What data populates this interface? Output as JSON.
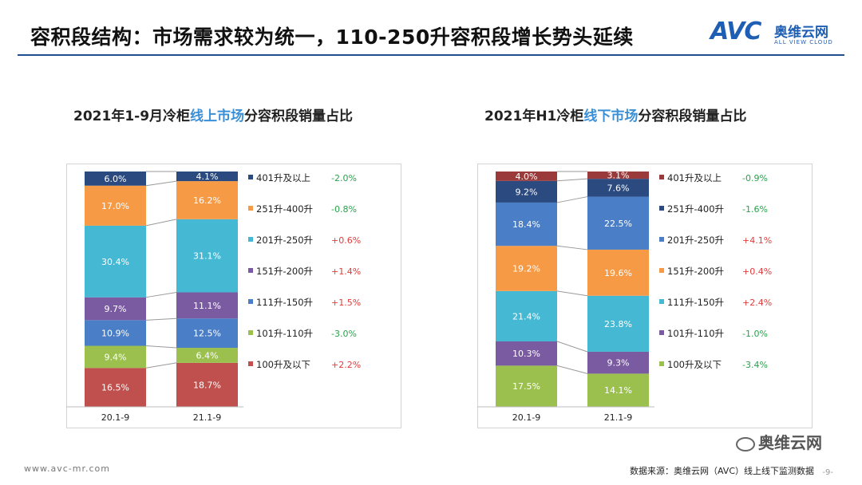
{
  "header": {
    "title": "容积段结构：市场需求较为统一，110-250升容积段增长势头延续",
    "logo_text": "AVC",
    "logo_cn": "奥维云网",
    "logo_en": "ALL VIEW CLOUD"
  },
  "footer": {
    "website": "www.avc-mr.com",
    "source": "数据来源：奥维云网（AVC）线上线下监测数据",
    "page": "-9-",
    "wechat": "奥维云网"
  },
  "colors": {
    "dark_blue": "#2b4a7f",
    "orange": "#f79a46",
    "cyan": "#45b8d4",
    "purple": "#7a5aa0",
    "blue": "#4a7ec6",
    "green": "#9bc04e",
    "red": "#c0504d",
    "dark_red": "#9b3a3a",
    "pos": "#e03c3c",
    "neg": "#27a34a"
  },
  "chart_data": [
    {
      "type": "bar",
      "stacked": true,
      "normalized": true,
      "title": "2021年1-9月冷柜线上市场分容积段销量占比",
      "title_parts": [
        "2021年1-9月冷柜",
        "线上市场",
        "分容积段销量占比"
      ],
      "categories": [
        "20.1-9",
        "21.1-9"
      ],
      "ylim": [
        0,
        100
      ],
      "series": [
        {
          "name": "100升及以下",
          "values": [
            16.5,
            18.7
          ],
          "labels": [
            "16.5%",
            "18.7%"
          ],
          "color": "#c0504d",
          "change": "+2.2%"
        },
        {
          "name": "101升-110升",
          "values": [
            9.4,
            6.4
          ],
          "labels": [
            "9.4%",
            "6.4%"
          ],
          "color": "#9bc04e",
          "change": "-3.0%"
        },
        {
          "name": "111升-150升",
          "values": [
            10.9,
            12.5
          ],
          "labels": [
            "10.9%",
            "12.5%"
          ],
          "color": "#4a7ec6",
          "change": "+1.5%"
        },
        {
          "name": "151升-200升",
          "values": [
            9.7,
            11.1
          ],
          "labels": [
            "9.7%",
            "11.1%"
          ],
          "color": "#7a5aa0",
          "change": "+1.4%"
        },
        {
          "name": "201升-250升",
          "values": [
            30.4,
            31.1
          ],
          "labels": [
            "30.4%",
            "31.1%"
          ],
          "color": "#45b8d4",
          "change": "+0.6%"
        },
        {
          "name": "251升-400升",
          "values": [
            17.0,
            16.2
          ],
          "labels": [
            "17.0%",
            "16.2%"
          ],
          "color": "#f79a46",
          "change": "-0.8%"
        },
        {
          "name": "401升及以上",
          "values": [
            6.0,
            4.1
          ],
          "labels": [
            "6.0%",
            "4.1%"
          ],
          "color": "#2b4a7f",
          "change": "-2.0%"
        }
      ]
    },
    {
      "type": "bar",
      "stacked": true,
      "normalized": true,
      "title": "2021年H1冷柜线下市场分容积段销量占比",
      "title_parts": [
        "2021年H1冷柜",
        "线下市场",
        "分容积段销量占比"
      ],
      "categories": [
        "20.1-9",
        "21.1-9"
      ],
      "ylim": [
        0,
        100
      ],
      "series": [
        {
          "name": "100升及以下",
          "values": [
            17.5,
            14.1
          ],
          "labels": [
            "17.5%",
            "14.1%"
          ],
          "color": "#9bc04e",
          "change": "-3.4%"
        },
        {
          "name": "101升-110升",
          "values": [
            10.3,
            9.3
          ],
          "labels": [
            "10.3%",
            "9.3%"
          ],
          "color": "#7a5aa0",
          "change": "-1.0%"
        },
        {
          "name": "111升-150升",
          "values": [
            21.4,
            23.8
          ],
          "labels": [
            "21.4%",
            "23.8%"
          ],
          "color": "#45b8d4",
          "change": "+2.4%"
        },
        {
          "name": "151升-200升",
          "values": [
            19.2,
            19.6
          ],
          "labels": [
            "19.2%",
            "19.6%"
          ],
          "color": "#f79a46",
          "change": "+0.4%"
        },
        {
          "name": "201升-250升",
          "values": [
            18.4,
            22.5
          ],
          "labels": [
            "18.4%",
            "22.5%"
          ],
          "color": "#4a7ec6",
          "change": "+4.1%"
        },
        {
          "name": "251升-400升",
          "values": [
            9.2,
            7.6
          ],
          "labels": [
            "9.2%",
            "7.6%"
          ],
          "color": "#2b4a7f",
          "change": "-1.6%"
        },
        {
          "name": "401升及以上",
          "values": [
            4.0,
            3.1
          ],
          "labels": [
            "4.0%",
            "3.1%"
          ],
          "color": "#9b3a3a",
          "change": "-0.9%"
        }
      ]
    }
  ]
}
